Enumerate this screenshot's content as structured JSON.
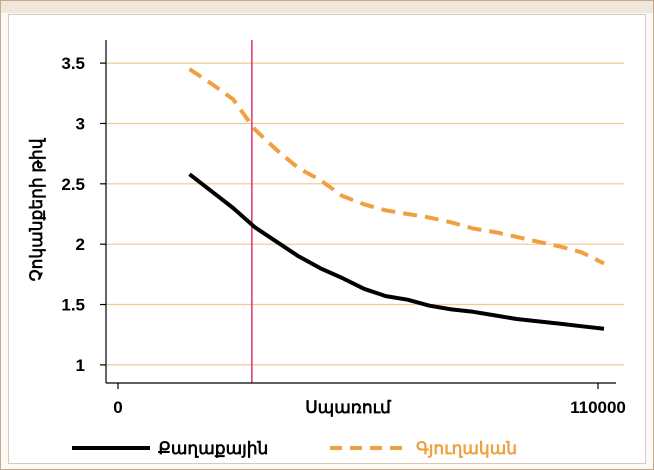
{
  "chart_data": {
    "type": "line",
    "title": "",
    "xlabel": "Սպառում",
    "ylabel": "Չոկանքերի թիվ",
    "xlim": [
      0,
      110000
    ],
    "ylim": [
      0.85,
      3.65
    ],
    "x_ticks": [
      {
        "value": 0,
        "label": "0"
      },
      {
        "value": 110000,
        "label": "110000"
      }
    ],
    "y_ticks": [
      {
        "value": 1,
        "label": "1"
      },
      {
        "value": 1.5,
        "label": "1.5"
      },
      {
        "value": 2,
        "label": "2"
      },
      {
        "value": 2.5,
        "label": "2.5"
      },
      {
        "value": 3,
        "label": "3"
      },
      {
        "value": 3.5,
        "label": "3.5"
      }
    ],
    "grid": "horizontal",
    "legend_position": "bottom",
    "vline_x": 29300,
    "series": [
      {
        "name": "Քաղաքային",
        "color": "#000000",
        "style": "solid",
        "x": [
          15000,
          20000,
          25000,
          30000,
          35000,
          40000,
          45000,
          50000,
          55000,
          60000,
          65000,
          70000,
          75000,
          80000,
          85000,
          90000,
          95000,
          100000,
          105000,
          110000
        ],
        "y": [
          2.58,
          2.44,
          2.3,
          2.14,
          2.02,
          1.9,
          1.8,
          1.72,
          1.63,
          1.57,
          1.54,
          1.49,
          1.46,
          1.44,
          1.41,
          1.38,
          1.36,
          1.34,
          1.32,
          1.3
        ]
      },
      {
        "name": "Գյուղական",
        "color": "#f0a040",
        "style": "dashed",
        "x": [
          15000,
          20000,
          25000,
          30000,
          35000,
          40000,
          45000,
          50000,
          55000,
          60000,
          65000,
          70000,
          75000,
          80000,
          85000,
          90000,
          95000,
          100000,
          105000,
          110000
        ],
        "y": [
          3.45,
          3.33,
          3.2,
          2.95,
          2.78,
          2.63,
          2.53,
          2.4,
          2.33,
          2.28,
          2.25,
          2.22,
          2.18,
          2.13,
          2.1,
          2.06,
          2.02,
          1.98,
          1.93,
          1.84
        ]
      }
    ]
  },
  "colors": {
    "grid": "#f0c890",
    "vline": "#e0307a",
    "axis": "#000000"
  }
}
